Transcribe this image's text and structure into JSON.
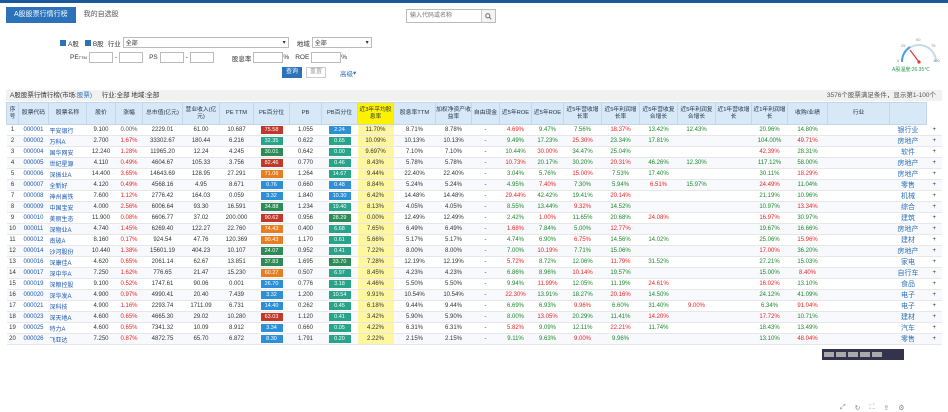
{
  "tabs": [
    {
      "label": "A股股票行情行榜",
      "active": true
    },
    {
      "label": "我的自选股",
      "active": false
    }
  ],
  "search": {
    "placeholder": "输入代码或名称"
  },
  "filters": {
    "row1": {
      "cb1": "A股",
      "cb2": "B股",
      "industry_label": "行业",
      "industry_value": "全部",
      "area_label": "地域",
      "area_value": "全部"
    },
    "row2": {
      "pe_label": "PE",
      "pe_sup": "TTM",
      "ps_label": "PS",
      "ps_sup": "",
      "roe_label": "ROE",
      "pct": "%",
      "div_label": "股息率",
      "sep": "-"
    },
    "query_label": "查询",
    "reset_label": "重置",
    "adv_label": "高级"
  },
  "gauge": {
    "value": "A股温度:26.35℃",
    "ticks": [
      "0",
      "25",
      "50",
      "75",
      "100"
    ]
  },
  "status": {
    "left": "A股股票行情行榜(市场:",
    "link": "股票)",
    "mid": "行业:全部 地域:全部",
    "right": "3576个股票满足条件，显示第1-100个"
  },
  "columns": [
    "序号",
    "股票代码",
    "股票名称",
    "股价",
    "涨幅",
    "总市值(亿元)",
    "营业收入(亿元)",
    "PE TTM",
    "PE百分位",
    "PB",
    "PB百分位",
    "近3年平均股息率",
    "股息率TTM",
    "加权净资产收益率",
    "自由现金",
    "近5年ROE",
    "近5年ROE",
    "近5年营收增长率",
    "近5年利润增长率",
    "近5年营收复合增长",
    "近5年利润复合增长",
    "近1年营收增长",
    "近1年利润增长",
    "收购/业绩",
    "行业",
    " "
  ],
  "highlight_col": 11,
  "rows": [
    [
      "1",
      "000001",
      "平安银行",
      "9.100",
      "0.00%",
      "2229.01",
      "61.00",
      "10.687",
      "75.58",
      "1.055",
      "2.24",
      "11.70%",
      "8.71%",
      "8.78%",
      "-",
      "4.69%",
      "9.47%",
      "7.56%",
      "18.37%",
      "13.42%",
      "12.43%",
      "",
      "20.96%",
      "14.80%",
      "",
      "银行业",
      "+"
    ],
    [
      "2",
      "000002",
      "万科A",
      "2.700",
      "1.67%",
      "33302.67",
      "180.44",
      "6.216",
      "32.35",
      "0.622",
      "0.65",
      "10.09%",
      "10.13%",
      "10.13%",
      "-",
      "9.49%",
      "17.23%",
      "25.30%",
      "23.34%",
      "17.81%",
      "",
      "",
      "104.00%",
      "49.71%",
      "",
      "房地产",
      "+"
    ],
    [
      "3",
      "000004",
      "国华网安",
      "12.240",
      "1.28%",
      "11965.20",
      "12.24",
      "4.245",
      "30.01",
      "0.642",
      "0.00",
      "9.697%",
      "7.10%",
      "7.10%",
      "-",
      "10.44%",
      "30.00%",
      "34.47%",
      "25.04%",
      "",
      "",
      "",
      "42.39%",
      "28.31%",
      "",
      "软件",
      "+"
    ],
    [
      "4",
      "000005",
      "世纪星源",
      "4.110",
      "0.49%",
      "4604.67",
      "105.33",
      "3.756",
      "82.46",
      "0.770",
      "0.46",
      "8.43%",
      "5.78%",
      "5.78%",
      "-",
      "10.73%",
      "20.17%",
      "30.20%",
      "20.31%",
      "46.26%",
      "12.30%",
      "",
      "117.12%",
      "58.00%",
      "",
      "房地产",
      "+"
    ],
    [
      "5",
      "000006",
      "深振业A",
      "14.400",
      "3.65%",
      "14643.69",
      "128.95",
      "27.291",
      "71.06",
      "1.264",
      "14.67",
      "9.44%",
      "22.40%",
      "22.40%",
      "-",
      "3.04%",
      "5.76%",
      "15.00%",
      "7.53%",
      "17.40%",
      "",
      "",
      "30.11%",
      "18.29%",
      "",
      "房地产",
      "+"
    ],
    [
      "6",
      "000007",
      "全新好",
      "4.120",
      "0.49%",
      "4568.16",
      "4.95",
      "8.671",
      "0.76",
      "0.660",
      "0.48",
      "8.84%",
      "5.24%",
      "5.24%",
      "-",
      "4.95%",
      "7.40%",
      "7.30%",
      "5.94%",
      "6.51%",
      "15.97%",
      "",
      "24.49%",
      "11.04%",
      "",
      "零售",
      "+"
    ],
    [
      "7",
      "000008",
      "神州高铁",
      "7.600",
      "1.12%",
      "2776.42",
      "164.03",
      "0.059",
      "3.32",
      "1.840",
      "10.30",
      "6.42%",
      "14.48%",
      "14.48%",
      "-",
      "29.44%",
      "42.42%",
      "19.41%",
      "20.14%",
      "",
      "",
      "",
      "21.19%",
      "10.96%",
      "",
      "机械",
      "+"
    ],
    [
      "8",
      "000009",
      "中国宝安",
      "4.000",
      "2.56%",
      "6006.64",
      "93.30",
      "16.591",
      "34.88",
      "1.234",
      "19.40",
      "8.13%",
      "4.05%",
      "4.05%",
      "-",
      "8.55%",
      "13.44%",
      "9.32%",
      "14.52%",
      "",
      "",
      "",
      "10.97%",
      "13.34%",
      "",
      "综合",
      "+"
    ],
    [
      "9",
      "000010",
      "美丽生态",
      "11.900",
      "0.08%",
      "6606.77",
      "37.02",
      "200.000",
      "90.62",
      "0.956",
      "28.29",
      "0.00%",
      "12.49%",
      "12.49%",
      "-",
      "2.42%",
      "1.00%",
      "11.65%",
      "20.68%",
      "24.08%",
      "",
      "",
      "16.97%",
      "30.97%",
      "",
      "建筑",
      "+"
    ],
    [
      "10",
      "000011",
      "深物业A",
      "4.740",
      "1.45%",
      "6269.40",
      "122.27",
      "22.760",
      "74.43",
      "0.400",
      "6.68",
      "7.65%",
      "6.49%",
      "6.49%",
      "-",
      "1.68%",
      "7.84%",
      "5.00%",
      "12.77%",
      "",
      "",
      "",
      "19.67%",
      "16.66%",
      "",
      "房地产",
      "+"
    ],
    [
      "11",
      "000012",
      "南玻A",
      "8.160",
      "0.17%",
      "924.54",
      "47.76",
      "120.369",
      "90.43",
      "1.170",
      "0.61",
      "5.66%",
      "5.17%",
      "5.17%",
      "-",
      "4.74%",
      "6.90%",
      "6.75%",
      "14.56%",
      "14.02%",
      "",
      "",
      "25.06%",
      "15.96%",
      "",
      "建材",
      "+"
    ],
    [
      "12",
      "000014",
      "沙河股份",
      "10.440",
      "1.38%",
      "15601.19",
      "404.23",
      "10.107",
      "24.07",
      "0.952",
      "0.41",
      "7.22%",
      "8.00%",
      "8.00%",
      "-",
      "7.00%",
      "10.19%",
      "7.71%",
      "15.06%",
      "",
      "",
      "",
      "17.00%",
      "36.20%",
      "",
      "房地产",
      "+"
    ],
    [
      "13",
      "000016",
      "深康佳A",
      "4.620",
      "0.65%",
      "2061.14",
      "62.67",
      "13.851",
      "37.83",
      "1.695",
      "33.70",
      "7.28%",
      "12.19%",
      "12.19%",
      "-",
      "5.72%",
      "8.72%",
      "12.06%",
      "11.79%",
      "31.52%",
      "",
      "",
      "27.21%",
      "15.03%",
      "",
      "家电",
      "+"
    ],
    [
      "14",
      "000017",
      "深中华A",
      "7.250",
      "1.62%",
      "776.65",
      "21.47",
      "15.230",
      "60.27",
      "0.507",
      "6.97",
      "8.45%",
      "4.23%",
      "4.23%",
      "-",
      "6.86%",
      "8.96%",
      "10.14%",
      "19.57%",
      "",
      "",
      "",
      "15.00%",
      "8.40%",
      "",
      "自行车",
      "+"
    ],
    [
      "15",
      "000019",
      "深粮控股",
      "9.100",
      "0.52%",
      "1747.61",
      "90.06",
      "0.001",
      "26.70",
      "0.776",
      "3.18",
      "4.46%",
      "5.50%",
      "5.50%",
      "-",
      "9.94%",
      "11.99%",
      "12.05%",
      "11.19%",
      "24.61%",
      "",
      "",
      "16.02%",
      "13.10%",
      "",
      "食品",
      "+"
    ],
    [
      "16",
      "000020",
      "深华发A",
      "4.900",
      "0.97%",
      "4990.41",
      "20.40",
      "7.439",
      "3.32",
      "1.200",
      "10.54",
      "9.91%",
      "10.54%",
      "10.54%",
      "-",
      "22.30%",
      "13.91%",
      "18.27%",
      "20.16%",
      "14.50%",
      "",
      "",
      "24.12%",
      "41.09%",
      "",
      "电子",
      "+"
    ],
    [
      "17",
      "000021",
      "深科技",
      "4.900",
      "1.16%",
      "2293.74",
      "1711.09",
      "6.731",
      "14.40",
      "0.262",
      "0.45",
      "6.18%",
      "9.44%",
      "9.44%",
      "-",
      "6.69%",
      "6.93%",
      "9.96%",
      "6.60%",
      "31.40%",
      "9.00%",
      "",
      "6.34%",
      "91.04%",
      "",
      "电子",
      "+"
    ],
    [
      "18",
      "000023",
      "深天地A",
      "4.600",
      "0.65%",
      "4665.30",
      "29.02",
      "10.280",
      "63.03",
      "1.120",
      "0.41",
      "3.42%",
      "5.90%",
      "5.90%",
      "-",
      "8.00%",
      "13.05%",
      "20.29%",
      "11.41%",
      "14.20%",
      "",
      "",
      "17.72%",
      "10.71%",
      "",
      "建材",
      "+"
    ],
    [
      "19",
      "000025",
      "特力A",
      "4.600",
      "0.65%",
      "7341.32",
      "10.09",
      "8.912",
      "3.34",
      "0.660",
      "0.05",
      "4.22%",
      "6.31%",
      "6.31%",
      "-",
      "5.82%",
      "9.09%",
      "12.11%",
      "22.21%",
      "11.74%",
      "",
      "",
      "18.43%",
      "13.49%",
      "",
      "汽车",
      "+"
    ],
    [
      "20",
      "000026",
      "飞亚达",
      "7.250",
      "0.87%",
      "4872.75",
      "65.70",
      "6.872",
      "8.30",
      "1.791",
      "0.20",
      "2.22%",
      "2.15%",
      "2.15%",
      "-",
      "9.11%",
      "9.63%",
      "9.00%",
      "9.96%",
      "",
      "",
      "",
      "13.10%",
      "48.04%",
      "",
      "零售",
      "+"
    ]
  ],
  "pe_pill_colors": [
    "red",
    "teal",
    "green",
    "red",
    "orange",
    "blue",
    "blue",
    "green",
    "red",
    "orange",
    "orange",
    "green",
    "green",
    "orange",
    "blue",
    "blue",
    "blue",
    "red",
    "blue",
    "blue"
  ],
  "pb_pill_colors": [
    "blue",
    "teal",
    "teal",
    "teal",
    "teal",
    "blue",
    "blue",
    "teal",
    "green",
    "teal",
    "teal",
    "teal",
    "green",
    "teal",
    "teal",
    "teal",
    "teal",
    "teal",
    "teal",
    "teal"
  ],
  "bottom_icons": [
    "pin-icon",
    "refresh-icon",
    "expand-icon",
    "share-icon",
    "settings-icon"
  ]
}
